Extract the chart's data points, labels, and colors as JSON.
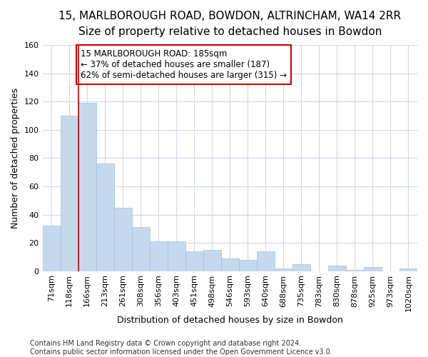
{
  "title": "15, MARLBOROUGH ROAD, BOWDON, ALTRINCHAM, WA14 2RR",
  "subtitle": "Size of property relative to detached houses in Bowdon",
  "xlabel": "Distribution of detached houses by size in Bowdon",
  "ylabel": "Number of detached properties",
  "categories": [
    "71sqm",
    "118sqm",
    "166sqm",
    "213sqm",
    "261sqm",
    "308sqm",
    "356sqm",
    "403sqm",
    "451sqm",
    "498sqm",
    "546sqm",
    "593sqm",
    "640sqm",
    "688sqm",
    "735sqm",
    "783sqm",
    "830sqm",
    "878sqm",
    "925sqm",
    "973sqm",
    "1020sqm"
  ],
  "values": [
    32,
    110,
    119,
    76,
    45,
    31,
    21,
    21,
    14,
    15,
    9,
    8,
    14,
    2,
    5,
    0,
    4,
    1,
    3,
    0,
    2
  ],
  "bar_color": "#c5d9ee",
  "bar_edge_color": "#9fbfe0",
  "vline_x_index": 2,
  "vline_color": "#cc0000",
  "annotation_text": "15 MARLBOROUGH ROAD: 185sqm\n← 37% of detached houses are smaller (187)\n62% of semi-detached houses are larger (315) →",
  "annotation_box_color": "#ffffff",
  "annotation_box_edge": "#cc0000",
  "ylim": [
    0,
    160
  ],
  "yticks": [
    0,
    20,
    40,
    60,
    80,
    100,
    120,
    140,
    160
  ],
  "footer_text": "Contains HM Land Registry data © Crown copyright and database right 2024.\nContains public sector information licensed under the Open Government Licence v3.0.",
  "background_color": "#ffffff",
  "grid_color": "#d0d8e8",
  "title_fontsize": 11,
  "subtitle_fontsize": 10,
  "axis_label_fontsize": 9,
  "tick_fontsize": 8,
  "footer_fontsize": 7,
  "annotation_fontsize": 8.5
}
